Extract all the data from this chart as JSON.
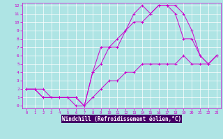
{
  "xlabel": "Windchill (Refroidissement éolien,°C)",
  "background_color": "#aee4e4",
  "grid_color": "#c0d8d8",
  "line_color": "#cc00cc",
  "xlim": [
    -0.5,
    23.5
  ],
  "ylim": [
    -0.3,
    12.3
  ],
  "xticks": [
    0,
    1,
    2,
    3,
    4,
    5,
    6,
    7,
    8,
    9,
    10,
    11,
    12,
    13,
    14,
    15,
    16,
    17,
    18,
    19,
    20,
    21,
    22,
    23
  ],
  "yticks": [
    0,
    1,
    2,
    3,
    4,
    5,
    6,
    7,
    8,
    9,
    10,
    11,
    12
  ],
  "xlabel_bg": "#440066",
  "lines": [
    {
      "x": [
        0,
        1,
        2,
        3,
        4,
        5,
        6,
        7,
        8,
        9,
        10,
        11,
        12,
        13,
        14,
        15,
        16,
        17,
        18,
        19,
        20,
        21,
        22,
        23
      ],
      "y": [
        2,
        2,
        1,
        1,
        1,
        1,
        1,
        0,
        1,
        2,
        3,
        3,
        4,
        4,
        5,
        5,
        5,
        5,
        5,
        6,
        5,
        5,
        5,
        6
      ]
    },
    {
      "x": [
        0,
        1,
        2,
        3,
        4,
        5,
        6,
        7,
        8,
        9,
        10,
        11,
        12,
        13,
        14,
        15,
        16,
        17,
        18,
        19,
        20,
        21,
        22,
        23
      ],
      "y": [
        2,
        2,
        2,
        1,
        1,
        1,
        0,
        0,
        4,
        5,
        7,
        8,
        9,
        10,
        10,
        11,
        12,
        12,
        12,
        11,
        9,
        6,
        5,
        6
      ]
    },
    {
      "x": [
        0,
        1,
        2,
        3,
        4,
        5,
        6,
        7,
        8,
        9,
        10,
        11,
        12,
        13,
        14,
        15,
        16,
        17,
        18,
        19,
        20,
        21,
        22,
        23
      ],
      "y": [
        2,
        2,
        1,
        1,
        1,
        1,
        1,
        0,
        4,
        7,
        7,
        7,
        9,
        11,
        12,
        11,
        12,
        12,
        11,
        8,
        8,
        6,
        5,
        6
      ]
    }
  ]
}
